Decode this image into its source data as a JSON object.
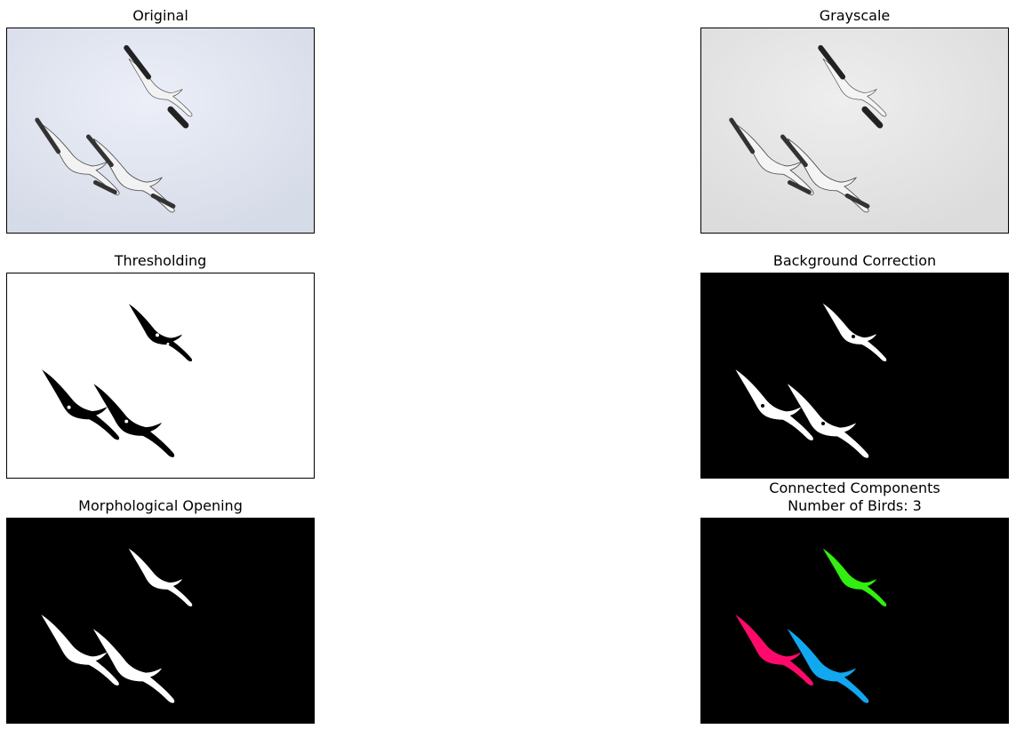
{
  "panels": [
    {
      "title": "Original",
      "subtitle": ""
    },
    {
      "title": "Grayscale",
      "subtitle": ""
    },
    {
      "title": "Thresholding",
      "subtitle": ""
    },
    {
      "title": "Background Correction",
      "subtitle": ""
    },
    {
      "title": "Morphological Opening",
      "subtitle": ""
    },
    {
      "title": "Connected Components",
      "subtitle": "Number of Birds: 3"
    }
  ],
  "colors": {
    "sky_original": "#dde2ee",
    "sky_grayscale": "#e4e4e4",
    "threshold_bg": "#ffffff",
    "mask_bg": "#000000",
    "mask_fg": "#ffffff",
    "component_1": "#33ee11",
    "component_2": "#ff0a6a",
    "component_3": "#11a8f0"
  }
}
